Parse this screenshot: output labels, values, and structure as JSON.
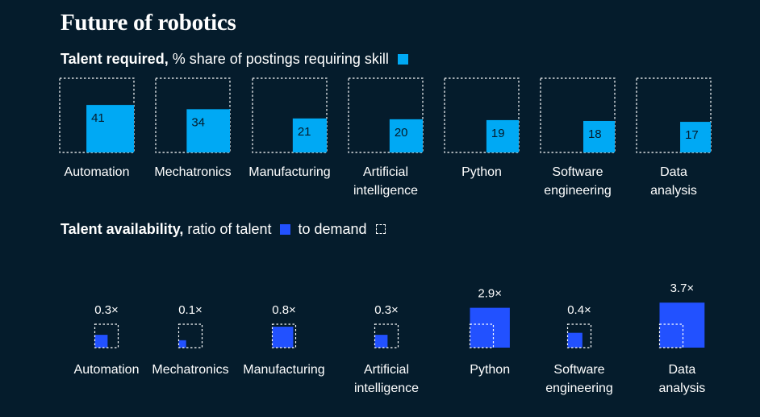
{
  "title": "Future of robotics",
  "chart_data": [
    {
      "type": "bar",
      "title_bold": "Talent required,",
      "title_rest": "% share of postings requiring skill",
      "legend": "share of postings",
      "unit": "%",
      "categories": [
        [
          "Automation"
        ],
        [
          "Mechatronics"
        ],
        [
          "Manufacturing"
        ],
        [
          "Artificial",
          "intelligence"
        ],
        [
          "Python"
        ],
        [
          "Software",
          "engineering"
        ],
        [
          "Data",
          "analysis"
        ]
      ],
      "values": [
        41,
        34,
        21,
        20,
        19,
        18,
        17
      ],
      "ylim": [
        0,
        100
      ],
      "color": "#00a9f4"
    },
    {
      "type": "bar",
      "title_bold": "Talent availability,",
      "title_rest_a": "ratio of talent",
      "title_rest_b": "to demand",
      "categories": [
        [
          "Automation"
        ],
        [
          "Mechatronics"
        ],
        [
          "Manufacturing"
        ],
        [
          "Artificial",
          "intelligence"
        ],
        [
          "Python"
        ],
        [
          "Software",
          "engineering"
        ],
        [
          "Data",
          "analysis"
        ]
      ],
      "values": [
        0.3,
        0.1,
        0.8,
        0.3,
        2.9,
        0.4,
        3.7
      ],
      "labels": [
        "0.3×",
        "0.1×",
        "0.8×",
        "0.3×",
        "2.9×",
        "0.4×",
        "3.7×"
      ],
      "demand_reference": 1.0,
      "color": "#2251ff"
    }
  ]
}
